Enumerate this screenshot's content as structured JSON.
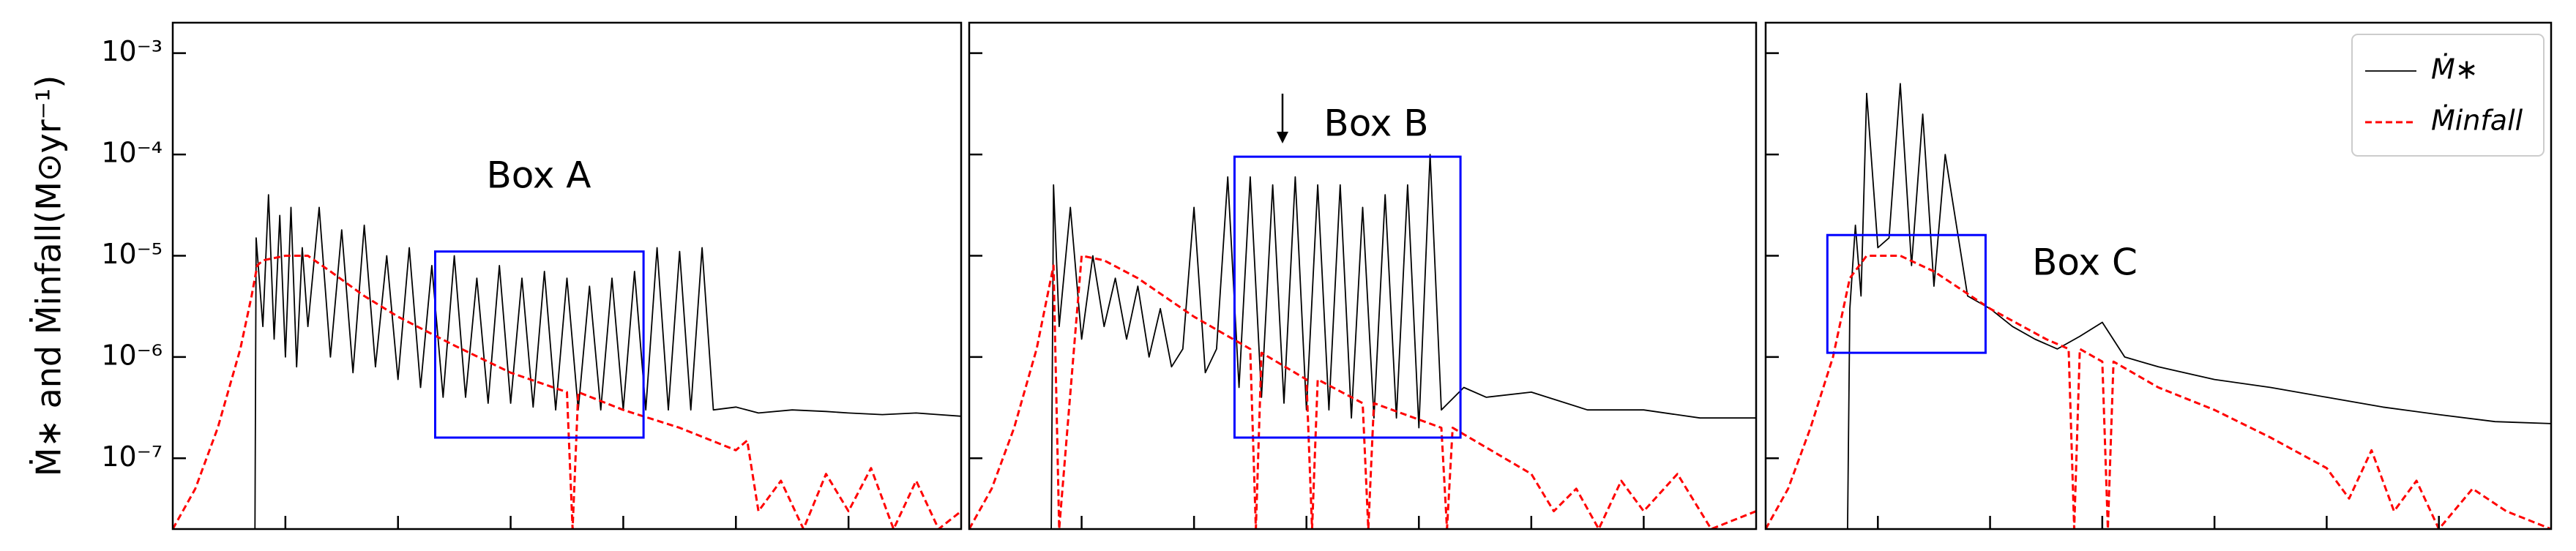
{
  "chart_data": [
    {
      "type": "line",
      "log_y": true,
      "ylabel": "Ṁ∗ and Ṁinfall(M⊙yr⁻¹)",
      "xlim": [
        0,
        7
      ],
      "xticks": [
        1,
        2,
        3,
        4,
        5,
        6
      ],
      "ylim": [
        2e-08,
        0.002
      ],
      "yticks": [
        {
          "value": 1e-07,
          "label": "10⁻⁷"
        },
        {
          "value": 1e-06,
          "label": "10⁻⁶"
        },
        {
          "value": 1e-05,
          "label": "10⁻⁵"
        },
        {
          "value": 0.0001,
          "label": "10⁻⁴"
        },
        {
          "value": 0.001,
          "label": "10⁻³"
        }
      ],
      "series": [
        {
          "color": "#000000",
          "linestyle": "solid",
          "x": [
            0.73,
            0.74,
            0.8,
            0.85,
            0.9,
            0.95,
            1.0,
            1.05,
            1.1,
            1.15,
            1.2,
            1.3,
            1.4,
            1.5,
            1.6,
            1.7,
            1.8,
            1.9,
            2.0,
            2.1,
            2.2,
            2.3,
            2.4,
            2.5,
            2.6,
            2.7,
            2.8,
            2.9,
            3.0,
            3.1,
            3.2,
            3.3,
            3.4,
            3.5,
            3.6,
            3.7,
            3.8,
            3.9,
            4.0,
            4.1,
            4.2,
            4.3,
            4.4,
            4.5,
            4.6,
            4.7,
            4.8,
            5.0,
            5.2,
            5.5,
            5.8,
            6.0,
            6.3,
            6.6,
            7.0
          ],
          "values": [
            2e-08,
            1.5e-05,
            2e-06,
            4e-05,
            1.5e-06,
            2.5e-05,
            1e-06,
            3e-05,
            8e-07,
            1.2e-05,
            2e-06,
            3e-05,
            1e-06,
            1.8e-05,
            7e-07,
            2e-05,
            8e-07,
            1e-05,
            6e-07,
            1.2e-05,
            5e-07,
            8e-06,
            4e-07,
            1e-05,
            4e-07,
            6e-06,
            3.5e-07,
            8e-06,
            3.5e-07,
            6e-06,
            3.2e-07,
            7e-06,
            3e-07,
            6e-06,
            3e-07,
            5e-06,
            3e-07,
            6e-06,
            3e-07,
            7e-06,
            3e-07,
            1.2e-05,
            3e-07,
            1.1e-05,
            3e-07,
            1.2e-05,
            3e-07,
            3.2e-07,
            2.8e-07,
            3e-07,
            2.9e-07,
            2.8e-07,
            2.7e-07,
            2.8e-07,
            2.6e-07
          ]
        },
        {
          "color": "#ff0000",
          "linestyle": "dashed",
          "x": [
            0,
            0.2,
            0.4,
            0.6,
            0.7,
            0.75,
            0.8,
            1.0,
            1.2,
            1.4,
            1.7,
            2.0,
            2.5,
            3.0,
            3.5,
            3.55,
            3.6,
            4.0,
            4.5,
            5.0,
            5.1,
            5.2,
            5.4,
            5.6,
            5.8,
            6.0,
            6.2,
            6.4,
            6.6,
            6.8,
            7.0
          ],
          "values": [
            2e-08,
            5e-08,
            2e-07,
            1.2e-06,
            4e-06,
            8e-06,
            9e-06,
            1e-05,
            1e-05,
            7e-06,
            4e-06,
            2.5e-06,
            1.3e-06,
            7e-07,
            4.5e-07,
            2e-08,
            4.5e-07,
            3e-07,
            2e-07,
            1.2e-07,
            1.5e-07,
            3e-08,
            6e-08,
            2e-08,
            7e-08,
            3e-08,
            8e-08,
            2e-08,
            6e-08,
            2e-08,
            3e-08
          ]
        }
      ],
      "boxes": [
        {
          "label": "Box A",
          "color": "#0000ff",
          "xlim": [
            2.33,
            4.18
          ],
          "ylim": [
            1.6e-07,
            1.1e-05
          ]
        }
      ]
    },
    {
      "type": "line",
      "log_y": true,
      "xlim": [
        0,
        7
      ],
      "xticks": [
        1,
        2,
        3,
        4,
        5,
        6
      ],
      "ylim": [
        2e-08,
        0.002
      ],
      "yticks": [
        1e-07,
        1e-06,
        1e-05,
        0.0001,
        0.001
      ],
      "series": [
        {
          "color": "#000000",
          "linestyle": "solid",
          "x": [
            0.73,
            0.75,
            0.8,
            0.9,
            1.0,
            1.1,
            1.2,
            1.3,
            1.4,
            1.5,
            1.6,
            1.7,
            1.8,
            1.9,
            2.0,
            2.1,
            2.2,
            2.3,
            2.4,
            2.5,
            2.6,
            2.7,
            2.8,
            2.9,
            3.0,
            3.1,
            3.2,
            3.3,
            3.4,
            3.5,
            3.6,
            3.7,
            3.8,
            3.9,
            4.0,
            4.1,
            4.2,
            4.4,
            4.6,
            5.0,
            5.5,
            6.0,
            6.5,
            7.0
          ],
          "values": [
            2e-08,
            5e-05,
            2e-06,
            3e-05,
            1.5e-06,
            1e-05,
            2e-06,
            6e-06,
            1.5e-06,
            5e-06,
            1e-06,
            3e-06,
            8e-07,
            1.2e-06,
            3e-05,
            7e-07,
            1.2e-06,
            6e-05,
            5e-07,
            6e-05,
            4e-07,
            5e-05,
            3.5e-07,
            6e-05,
            3e-07,
            5e-05,
            3e-07,
            5e-05,
            2.5e-07,
            3e-05,
            2.5e-07,
            4e-05,
            2.5e-07,
            5e-05,
            2e-07,
            0.0001,
            3e-07,
            5e-07,
            4e-07,
            4.5e-07,
            3e-07,
            3e-07,
            2.5e-07,
            2.5e-07
          ]
        },
        {
          "color": "#ff0000",
          "linestyle": "dashed",
          "x": [
            0,
            0.2,
            0.4,
            0.6,
            0.75,
            0.8,
            1.0,
            1.2,
            1.5,
            2.0,
            2.5,
            2.55,
            2.6,
            3.0,
            3.05,
            3.1,
            3.5,
            3.55,
            3.6,
            4.2,
            4.25,
            4.3,
            5.0,
            5.2,
            5.4,
            5.6,
            5.8,
            6.0,
            6.3,
            6.6,
            7.0
          ],
          "values": [
            2e-08,
            5e-08,
            2e-07,
            1.2e-06,
            8e-06,
            2e-08,
            1e-05,
            9e-06,
            6e-06,
            2.5e-06,
            1.2e-06,
            2e-08,
            1.1e-06,
            6e-07,
            2e-08,
            6e-07,
            3.5e-07,
            2e-08,
            3.5e-07,
            2e-07,
            2e-08,
            2e-07,
            7e-08,
            3e-08,
            5e-08,
            2e-08,
            6e-08,
            3e-08,
            7e-08,
            2e-08,
            3e-08
          ]
        }
      ],
      "boxes": [
        {
          "label": "Box B",
          "color": "#0000ff",
          "xlim": [
            2.36,
            4.37
          ],
          "ylim": [
            1.6e-07,
            9.5e-05
          ]
        }
      ]
    },
    {
      "type": "line",
      "log_y": true,
      "legend": "upper right",
      "xlim": [
        0,
        7
      ],
      "xticks": [
        1,
        2,
        3,
        4,
        5,
        6
      ],
      "ylim": [
        2e-08,
        0.002
      ],
      "yticks": [
        1e-07,
        1e-06,
        1e-05,
        0.0001,
        0.001
      ],
      "series": [
        {
          "name": "Ṁ∗",
          "color": "#000000",
          "linestyle": "solid",
          "x": [
            0.73,
            0.75,
            0.8,
            0.85,
            0.9,
            1.0,
            1.1,
            1.2,
            1.3,
            1.4,
            1.5,
            1.6,
            1.8,
            2.0,
            2.2,
            2.4,
            2.6,
            2.8,
            3.0,
            3.2,
            3.5,
            4.0,
            4.5,
            5.0,
            5.5,
            6.0,
            6.5,
            7.0
          ],
          "values": [
            2e-08,
            3e-06,
            2e-05,
            4e-06,
            0.0004,
            1.2e-05,
            1.5e-05,
            0.0005,
            8e-06,
            0.00025,
            5e-06,
            0.0001,
            4e-06,
            3e-06,
            2e-06,
            1.5e-06,
            1.2e-06,
            1.6e-06,
            2.2e-06,
            1e-06,
            8e-07,
            6e-07,
            5e-07,
            4e-07,
            3.2e-07,
            2.7e-07,
            2.3e-07,
            2.2e-07
          ]
        },
        {
          "name": "Ṁinfall",
          "color": "#ff0000",
          "linestyle": "dashed",
          "x": [
            0,
            0.2,
            0.4,
            0.6,
            0.75,
            0.9,
            1.2,
            1.5,
            2.0,
            2.5,
            2.7,
            2.75,
            2.8,
            3.0,
            3.05,
            3.1,
            3.5,
            4.0,
            4.5,
            5.0,
            5.2,
            5.4,
            5.6,
            5.8,
            6.0,
            6.3,
            6.6,
            7.0
          ],
          "values": [
            2e-08,
            5e-08,
            2e-07,
            1e-06,
            6e-06,
            1e-05,
            1e-05,
            7e-06,
            3e-06,
            1.5e-06,
            1.2e-06,
            2e-08,
            1.2e-06,
            9e-07,
            2e-08,
            9e-07,
            5e-07,
            3e-07,
            1.6e-07,
            8e-08,
            4e-08,
            1.2e-07,
            3e-08,
            6e-08,
            2e-08,
            5e-08,
            3e-08,
            2e-08
          ]
        }
      ],
      "boxes": [
        {
          "label": "Box C",
          "color": "#0000ff",
          "xlim": [
            0.55,
            1.96
          ],
          "ylim": [
            1.1e-06,
            1.6e-05
          ]
        }
      ]
    }
  ]
}
